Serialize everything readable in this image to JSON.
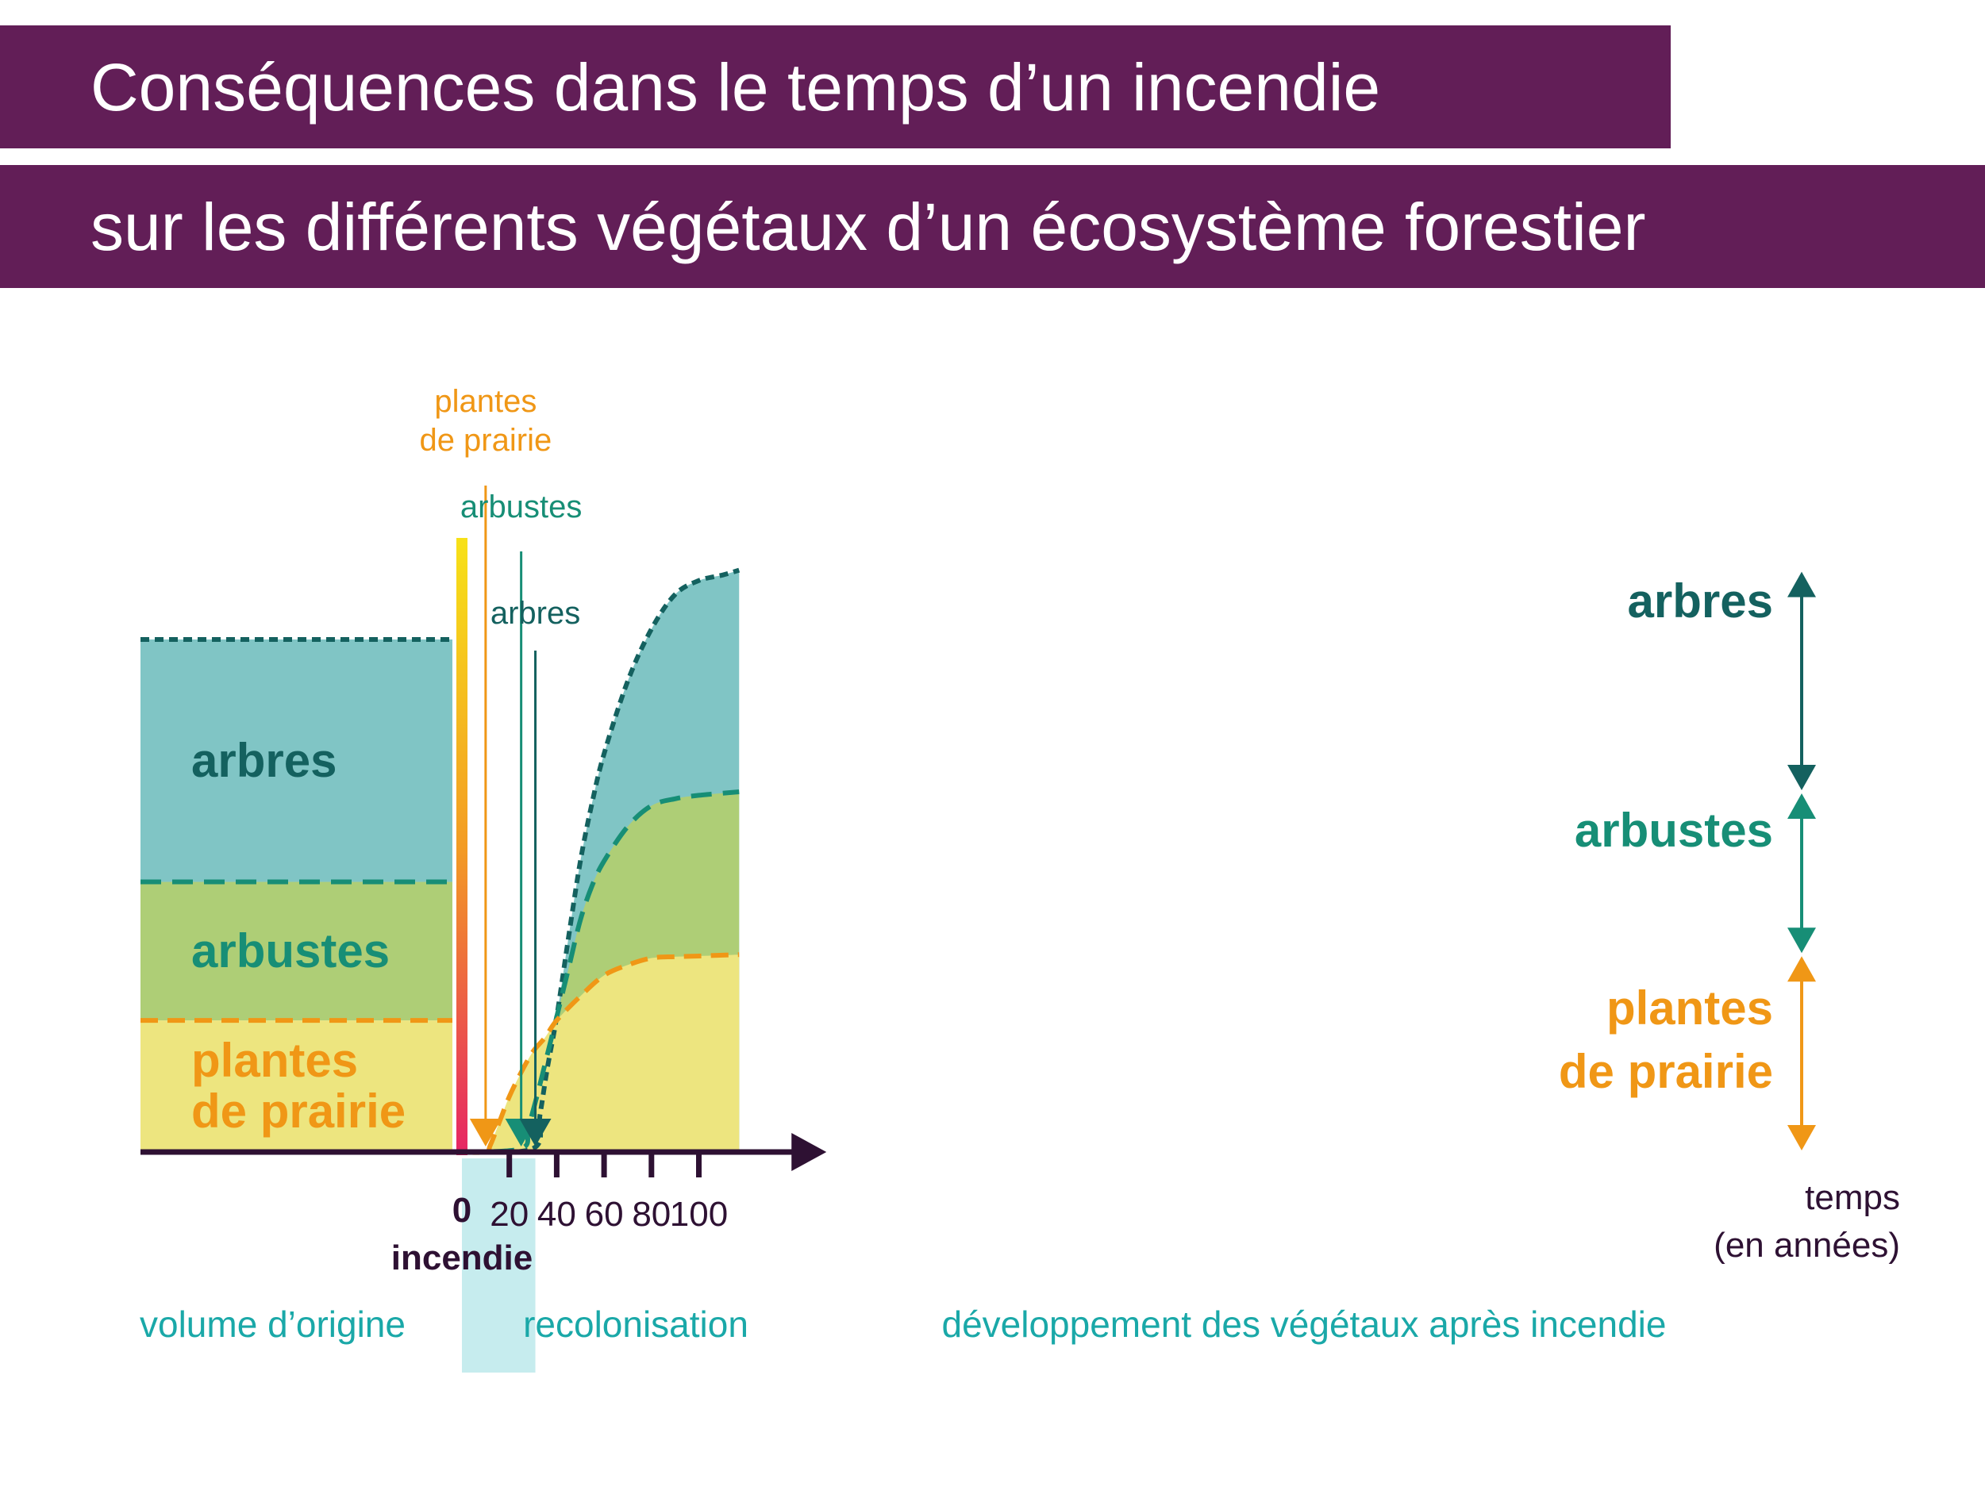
{
  "title": {
    "line1": "Conséquences dans le temps d’un incendie",
    "line2": "sur les différents végétaux d’un écosystème forestier"
  },
  "colors": {
    "banner": "#621e57",
    "arbres_fill": "#80c5c5",
    "arbres_line": "#14615f",
    "arbustes_fill": "#aece76",
    "arbustes_line": "#178e76",
    "prairie_fill": "#ede57f",
    "prairie_line": "#f09716",
    "axis": "#2e1133",
    "phase_text": "#1aa8a8",
    "recolonisation_bg": "#c6ecee"
  },
  "chart_data": {
    "type": "area",
    "stacked": true,
    "x_axis": {
      "ticks": [
        "0",
        "20",
        "40",
        "60",
        "80",
        "100"
      ],
      "tick_values": [
        0,
        20,
        40,
        60,
        80,
        100
      ],
      "label_line1": "temps",
      "label_line2": "(en années)",
      "origin_label": "incendie",
      "range": [
        0,
        117
      ]
    },
    "y_axis": {
      "ticks": [],
      "label": ""
    },
    "original_volume": {
      "series": [
        {
          "name": "plantes de prairie",
          "label_lines": [
            "plantes",
            "de prairie"
          ],
          "value": 19
        },
        {
          "name": "arbustes",
          "label_lines": [
            "arbustes"
          ],
          "value": 20
        },
        {
          "name": "arbres",
          "label_lines": [
            "arbres"
          ],
          "value": 35
        }
      ]
    },
    "series": [
      {
        "name": "plantes de prairie",
        "label_lines": [
          "plantes",
          "de prairie"
        ],
        "points": [
          [
            0,
            0
          ],
          [
            10,
            0
          ],
          [
            12,
            1
          ],
          [
            16,
            4.5
          ],
          [
            20,
            8
          ],
          [
            25,
            11.5
          ],
          [
            30,
            14.5
          ],
          [
            35,
            16.5
          ],
          [
            40,
            19
          ],
          [
            50,
            22.5
          ],
          [
            60,
            25.5
          ],
          [
            70,
            27
          ],
          [
            80,
            28
          ],
          [
            90,
            28.2
          ],
          [
            100,
            28.3
          ],
          [
            117,
            28.5
          ]
        ]
      },
      {
        "name": "arbustes",
        "label_lines": [
          "arbustes"
        ],
        "points": [
          [
            0,
            0
          ],
          [
            25,
            0.5
          ],
          [
            28,
            3.5
          ],
          [
            32,
            8.5
          ],
          [
            36,
            14
          ],
          [
            40,
            19.5
          ],
          [
            45,
            26.5
          ],
          [
            50,
            33.5
          ],
          [
            55,
            38.5
          ],
          [
            60,
            42
          ],
          [
            70,
            47
          ],
          [
            80,
            50
          ],
          [
            90,
            51
          ],
          [
            100,
            51.5
          ],
          [
            117,
            52
          ]
        ]
      },
      {
        "name": "arbres",
        "label_lines": [
          "arbres"
        ],
        "points": [
          [
            0,
            0
          ],
          [
            30,
            0.5
          ],
          [
            33,
            5.5
          ],
          [
            36,
            12
          ],
          [
            40,
            19.5
          ],
          [
            45,
            31
          ],
          [
            50,
            42
          ],
          [
            55,
            50.5
          ],
          [
            60,
            57.5
          ],
          [
            70,
            68
          ],
          [
            80,
            75.5
          ],
          [
            90,
            80.5
          ],
          [
            100,
            82.5
          ],
          [
            110,
            83.3
          ],
          [
            117,
            84
          ]
        ]
      }
    ],
    "annotations": [
      {
        "label_lines": [
          "plantes",
          "de prairie"
        ],
        "x": 10
      },
      {
        "label_lines": [
          "arbustes"
        ],
        "x": 25
      },
      {
        "label_lines": [
          "arbres"
        ],
        "x": 31
      }
    ],
    "right_labels": [
      {
        "name": "arbres",
        "label_lines": [
          "arbres"
        ]
      },
      {
        "name": "arbustes",
        "label_lines": [
          "arbustes"
        ]
      },
      {
        "name": "plantes de prairie",
        "label_lines": [
          "plantes",
          "de prairie"
        ]
      }
    ],
    "phases": {
      "original": "volume d’origine",
      "recolonisation": "recolonisation",
      "development": "développement des végétaux après incendie",
      "recolonisation_range": [
        0,
        31
      ]
    }
  }
}
